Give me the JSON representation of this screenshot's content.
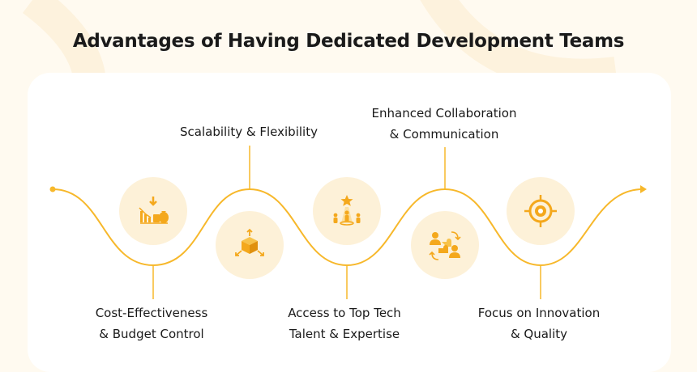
{
  "title": "Advantages of Having Dedicated Development Teams",
  "advantages": [
    {
      "line1": "Cost-Effectiveness",
      "line2": "& Budget Control",
      "icon": "cost-chart-icon"
    },
    {
      "line1": "Scalability & Flexibility",
      "line2": "",
      "icon": "scalability-cube-icon"
    },
    {
      "line1": "Access to Top Tech",
      "line2": "Talent & Expertise",
      "icon": "talent-star-icon"
    },
    {
      "line1": "Enhanced Collaboration",
      "line2": "& Communication",
      "icon": "collaboration-puzzle-icon"
    },
    {
      "line1": "Focus on Innovation",
      "line2": "& Quality",
      "icon": "target-icon"
    }
  ],
  "colors": {
    "accent": "#f7b82b",
    "icon_fill": "#f4a81c",
    "circle": "#fdf1d8",
    "background": "#fffaf0",
    "card": "#ffffff"
  }
}
